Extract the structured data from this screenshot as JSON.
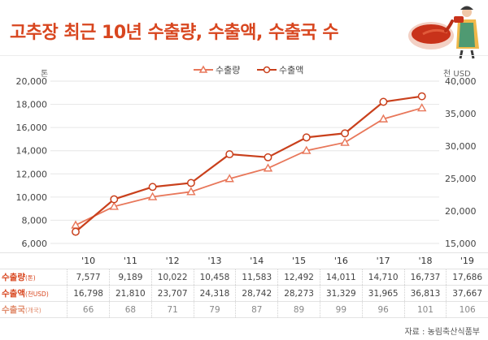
{
  "header": {
    "title": "고추장 최근 10년 수출량, 수출액, 수출국 수"
  },
  "colors": {
    "accent": "#d8461f",
    "line_volume": "#e8775a",
    "line_value": "#c9401c"
  },
  "chart_data": {
    "type": "line",
    "categories": [
      "'10",
      "'11",
      "'12",
      "'13",
      "'14",
      "'15",
      "'16",
      "'17",
      "'18",
      "'19"
    ],
    "series": [
      {
        "name": "수출량",
        "axis": "left",
        "marker": "triangle",
        "values": [
          7577,
          9189,
          10022,
          10458,
          11583,
          12492,
          14011,
          14710,
          16737,
          17686
        ]
      },
      {
        "name": "수출액",
        "axis": "right",
        "marker": "circle",
        "values": [
          16798,
          21810,
          23707,
          24318,
          28742,
          28273,
          31329,
          31965,
          36813,
          37667
        ]
      }
    ],
    "left_axis": {
      "unit": "톤",
      "min": 6000,
      "max": 20000,
      "ticks": [
        "6,000",
        "8,000",
        "10,000",
        "12,000",
        "14,000",
        "16,000",
        "18,000",
        "20,000"
      ]
    },
    "right_axis": {
      "unit": "천 USD",
      "min": 15000,
      "max": 40000,
      "ticks": [
        "15,000",
        "20,000",
        "25,000",
        "30,000",
        "35,000",
        "40,000"
      ]
    },
    "grid": true,
    "legend_position": "top-center"
  },
  "table": {
    "rows": [
      {
        "label": "수출량",
        "unit": "(톤)",
        "values": [
          "7,577",
          "9,189",
          "10,022",
          "10,458",
          "11,583",
          "12,492",
          "14,011",
          "14,710",
          "16,737",
          "17,686"
        ]
      },
      {
        "label": "수출액",
        "unit": "(천USD)",
        "values": [
          "16,798",
          "21,810",
          "23,707",
          "24,318",
          "28,742",
          "28,273",
          "31,329",
          "31,965",
          "36,813",
          "37,667"
        ]
      },
      {
        "label": "수출국",
        "unit": "(개국)",
        "values": [
          "66",
          "68",
          "71",
          "79",
          "87",
          "89",
          "99",
          "96",
          "101",
          "106"
        ]
      }
    ]
  },
  "source": "자료 : 농림축산식품부",
  "illustration": {
    "icon": "chef-pouring-gochujang-icon"
  }
}
